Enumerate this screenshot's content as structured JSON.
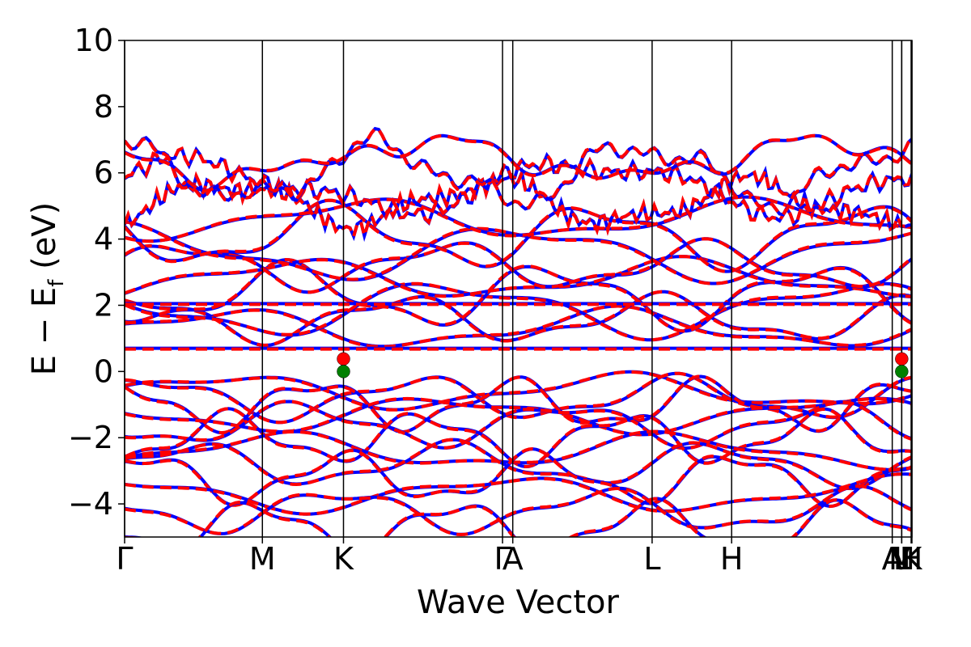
{
  "chart_data": {
    "type": "line",
    "title": "",
    "xlabel": "Wave Vector",
    "ylabel_parts": {
      "main": "E − E",
      "sub": "f",
      "unit": " (eV)"
    },
    "ylim": [
      -5,
      10
    ],
    "yticks": [
      -4,
      -2,
      0,
      2,
      4,
      6,
      8,
      10
    ],
    "ytick_labels": [
      "−4",
      "−2",
      "0",
      "2",
      "4",
      "6",
      "8",
      "10"
    ],
    "xlim": [
      0,
      1
    ],
    "kpoints": [
      {
        "label": "Γ",
        "x": 0.0
      },
      {
        "label": "M",
        "x": 0.175
      },
      {
        "label": "K",
        "x": 0.278
      },
      {
        "label": "Γ",
        "x": 0.48
      },
      {
        "label": "A",
        "x": 0.493
      },
      {
        "label": "L",
        "x": 0.67
      },
      {
        "label": "H",
        "x": 0.771
      },
      {
        "label": "A",
        "x": 0.975
      },
      {
        "label": "L",
        "x": 0.987
      },
      {
        "label": "M",
        "x": 0.987
      },
      {
        "label": "H",
        "x": 0.999
      },
      {
        "label": "K",
        "x": 1.0
      }
    ],
    "grid": false,
    "legend": "none",
    "series": [
      {
        "style": "solid",
        "color": "#0000ff"
      },
      {
        "style": "dashed",
        "color": "#ff0000"
      }
    ],
    "markers": [
      {
        "x": 0.278,
        "y": 0.38,
        "color": "#ff0000"
      },
      {
        "x": 0.278,
        "y": 0.0,
        "color": "#008000"
      },
      {
        "x": 0.987,
        "y": 0.38,
        "color": "#ff0000"
      },
      {
        "x": 0.987,
        "y": 0.0,
        "color": "#008000"
      }
    ],
    "flat_bands": [
      0.7,
      2.05
    ],
    "valence_bands": [
      -0.6,
      -0.8,
      -1.0,
      -1.3,
      -1.6,
      -2.0,
      -2.4,
      -2.8,
      -3.2,
      -3.7,
      -4.2,
      -4.7
    ],
    "conduction_bands": [
      1.3,
      1.6,
      1.9,
      2.3,
      2.8,
      3.2,
      3.6,
      4.1,
      4.6,
      5.1,
      5.6,
      6.0,
      6.4
    ]
  }
}
